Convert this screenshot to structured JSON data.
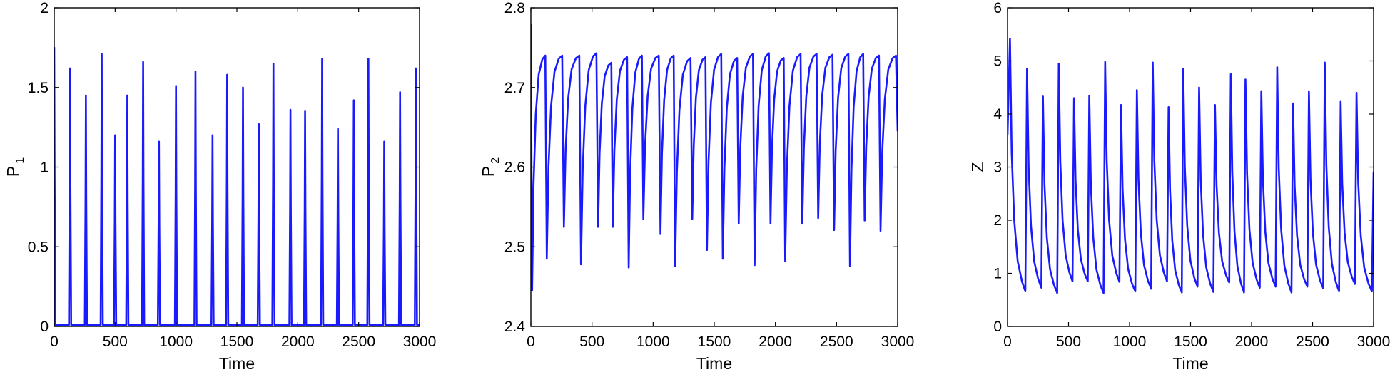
{
  "chart_data": [
    {
      "type": "line",
      "xlabel": "Time",
      "ylabel": "P",
      "ylabel_subscript": "1",
      "xlim": [
        0,
        3000
      ],
      "ylim": [
        0,
        2
      ],
      "xticks": [
        0,
        500,
        1000,
        1500,
        2000,
        2500,
        3000
      ],
      "yticks": [
        0,
        0.5,
        1,
        1.5,
        2
      ],
      "x_tick_labels": [
        "0",
        "500",
        "1000",
        "1500",
        "2000",
        "2500",
        "3000"
      ],
      "y_tick_labels": [
        "0",
        "0.5",
        "1",
        "1.5",
        "2"
      ],
      "color": "#1a1aff",
      "series": [
        {
          "pattern": "spikes",
          "x": [
            0,
            130,
            260,
            390,
            500,
            600,
            730,
            860,
            1000,
            1160,
            1300,
            1420,
            1550,
            1680,
            1800,
            1940,
            2060,
            2200,
            2330,
            2460,
            2580,
            2710,
            2840,
            2970
          ],
          "peaks": [
            1.75,
            1.62,
            1.45,
            1.71,
            1.2,
            1.45,
            1.66,
            1.16,
            1.51,
            1.6,
            1.2,
            1.58,
            1.5,
            1.27,
            1.65,
            1.36,
            1.35,
            1.68,
            1.24,
            1.42,
            1.68,
            1.16,
            1.47,
            1.62
          ],
          "baseline": 0.01
        }
      ]
    },
    {
      "type": "line",
      "xlabel": "Time",
      "ylabel": "P",
      "ylabel_subscript": "2",
      "xlim": [
        0,
        3000
      ],
      "ylim": [
        2.4,
        2.8
      ],
      "xticks": [
        0,
        500,
        1000,
        1500,
        2000,
        2500,
        3000
      ],
      "yticks": [
        2.4,
        2.5,
        2.6,
        2.7,
        2.8
      ],
      "x_tick_labels": [
        "0",
        "500",
        "1000",
        "1500",
        "2000",
        "2500",
        "3000"
      ],
      "y_tick_labels": [
        "2.4",
        "2.5",
        "2.6",
        "2.7",
        "2.8"
      ],
      "color": "#1a1aff",
      "series": [
        {
          "pattern": "sawtooth-down",
          "start": 2.78,
          "x": [
            10,
            130,
            270,
            410,
            550,
            670,
            800,
            920,
            1060,
            1180,
            1320,
            1440,
            1570,
            1700,
            1830,
            1960,
            2080,
            2220,
            2350,
            2480,
            2610,
            2730,
            2860,
            3000
          ],
          "troughs": [
            2.445,
            2.485,
            2.525,
            2.478,
            2.525,
            2.525,
            2.474,
            2.535,
            2.516,
            2.476,
            2.535,
            2.496,
            2.485,
            2.529,
            2.477,
            2.529,
            2.482,
            2.529,
            2.536,
            2.521,
            2.476,
            2.533,
            2.52,
            2.645
          ],
          "peaks": [
            2.74,
            2.74,
            2.74,
            2.743,
            2.731,
            2.738,
            2.74,
            2.74,
            2.74,
            2.737,
            2.738,
            2.742,
            2.737,
            2.742,
            2.743,
            2.737,
            2.742,
            2.742,
            2.741,
            2.742,
            2.742,
            2.74,
            2.74
          ]
        }
      ]
    },
    {
      "type": "line",
      "xlabel": "Time",
      "ylabel": "Z",
      "ylabel_subscript": "",
      "xlim": [
        0,
        3000
      ],
      "ylim": [
        0,
        6
      ],
      "xticks": [
        0,
        500,
        1000,
        1500,
        2000,
        2500,
        3000
      ],
      "yticks": [
        0,
        1,
        2,
        3,
        4,
        5,
        6
      ],
      "x_tick_labels": [
        "0",
        "500",
        "1000",
        "1500",
        "2000",
        "2500",
        "3000"
      ],
      "y_tick_labels": [
        "0",
        "1",
        "2",
        "3",
        "4",
        "5",
        "6"
      ],
      "color": "#1a1aff",
      "series": [
        {
          "pattern": "sawtooth-up",
          "start": 3.6,
          "x": [
            20,
            160,
            290,
            420,
            545,
            670,
            800,
            930,
            1060,
            1190,
            1320,
            1440,
            1570,
            1700,
            1830,
            1950,
            2080,
            2210,
            2340,
            2470,
            2600,
            2730,
            2860,
            3000
          ],
          "peaks": [
            5.42,
            4.85,
            4.33,
            4.95,
            4.3,
            4.34,
            4.98,
            4.17,
            4.45,
            4.97,
            4.13,
            4.85,
            4.5,
            4.17,
            4.75,
            4.65,
            4.43,
            4.88,
            4.2,
            4.43,
            4.97,
            4.23,
            4.4,
            2.9
          ],
          "troughs": [
            0.66,
            0.73,
            0.63,
            0.85,
            0.85,
            0.63,
            0.84,
            0.66,
            0.71,
            0.85,
            0.64,
            0.75,
            0.65,
            0.83,
            0.64,
            0.73,
            0.75,
            0.64,
            0.75,
            0.72,
            0.66,
            0.8,
            0.66
          ]
        }
      ]
    }
  ]
}
